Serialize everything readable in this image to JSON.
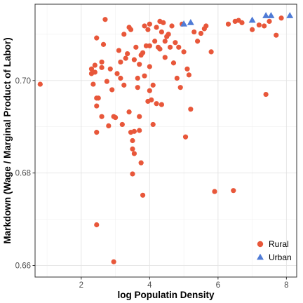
{
  "chart_data": {
    "type": "scatter",
    "title": "",
    "xlabel": "log Populatin Density",
    "ylabel": "Markdown (Wage / Marginal Product of Labor)",
    "xlim": [
      0.65,
      8.3
    ],
    "ylim": [
      0.6575,
      0.7165
    ],
    "x_ticks": [
      2,
      4,
      6,
      8
    ],
    "x_tick_labels": [
      "2",
      "4",
      "6",
      "8"
    ],
    "y_ticks": [
      0.66,
      0.68,
      0.7
    ],
    "y_tick_labels": [
      "0.66",
      "0.68",
      "0.70"
    ],
    "grid": true,
    "legend_placement": "bottom-right",
    "colors": {
      "Rural": "#e8573a",
      "Urban": "#4f7bd6"
    },
    "series": [
      {
        "name": "Rural",
        "marker": "circle",
        "points": [
          [
            0.8,
            0.6992
          ],
          [
            2.3,
            0.7025
          ],
          [
            2.3,
            0.7015
          ],
          [
            2.35,
            0.6992
          ],
          [
            2.4,
            0.7033
          ],
          [
            2.4,
            0.7018
          ],
          [
            2.45,
            0.7092
          ],
          [
            2.45,
            0.6962
          ],
          [
            2.45,
            0.6945
          ],
          [
            2.45,
            0.6888
          ],
          [
            2.6,
            0.6922
          ],
          [
            2.6,
            0.7028
          ],
          [
            2.65,
            0.7078
          ],
          [
            2.7,
            0.7132
          ],
          [
            2.75,
            0.6998
          ],
          [
            2.8,
            0.6902
          ],
          [
            2.85,
            0.7025
          ],
          [
            2.9,
            0.698
          ],
          [
            2.95,
            0.6922
          ],
          [
            3.0,
            0.692
          ],
          [
            3.05,
            0.7015
          ],
          [
            3.1,
            0.7065
          ],
          [
            3.15,
            0.704
          ],
          [
            3.15,
            0.7005
          ],
          [
            3.2,
            0.6905
          ],
          [
            3.25,
            0.71
          ],
          [
            3.3,
            0.7048
          ],
          [
            3.35,
            0.7058
          ],
          [
            3.4,
            0.6932
          ],
          [
            3.4,
            0.7115
          ],
          [
            3.45,
            0.711
          ],
          [
            3.45,
            0.6888
          ],
          [
            3.5,
            0.687
          ],
          [
            3.5,
            0.6852
          ],
          [
            3.5,
            0.6798
          ],
          [
            3.55,
            0.689
          ],
          [
            3.55,
            0.7045
          ],
          [
            3.6,
            0.7072
          ],
          [
            3.65,
            0.7005
          ],
          [
            3.65,
            0.6985
          ],
          [
            3.7,
            0.6922
          ],
          [
            3.7,
            0.6892
          ],
          [
            3.75,
            0.6822
          ],
          [
            3.75,
            0.7055
          ],
          [
            3.8,
            0.706
          ],
          [
            3.8,
            0.6752
          ],
          [
            3.85,
            0.701
          ],
          [
            3.85,
            0.7118
          ],
          [
            3.9,
            0.7075
          ],
          [
            3.95,
            0.711
          ],
          [
            3.95,
            0.6955
          ],
          [
            4.0,
            0.7122
          ],
          [
            4.0,
            0.7075
          ],
          [
            4.0,
            0.703
          ],
          [
            4.05,
            0.6958
          ],
          [
            4.1,
            0.699
          ],
          [
            4.1,
            0.6905
          ],
          [
            4.15,
            0.7085
          ],
          [
            4.2,
            0.7115
          ],
          [
            4.2,
            0.695
          ],
          [
            4.25,
            0.7072
          ],
          [
            4.3,
            0.7128
          ],
          [
            4.35,
            0.7105
          ],
          [
            4.35,
            0.6948
          ],
          [
            4.4,
            0.7125
          ],
          [
            4.45,
            0.7085
          ],
          [
            4.5,
            0.7095
          ],
          [
            4.55,
            0.71
          ],
          [
            4.6,
            0.7072
          ],
          [
            4.65,
            0.7118
          ],
          [
            4.7,
            0.7038
          ],
          [
            4.75,
            0.7082
          ],
          [
            4.8,
            0.7005
          ],
          [
            4.85,
            0.7072
          ],
          [
            4.9,
            0.6985
          ],
          [
            4.95,
            0.7122
          ],
          [
            5.0,
            0.7062
          ],
          [
            5.05,
            0.6878
          ],
          [
            5.1,
            0.7025
          ],
          [
            5.15,
            0.7012
          ],
          [
            5.2,
            0.6938
          ],
          [
            5.3,
            0.7105
          ],
          [
            5.4,
            0.7085
          ],
          [
            5.5,
            0.7102
          ],
          [
            5.6,
            0.7112
          ],
          [
            5.65,
            0.7118
          ],
          [
            5.8,
            0.7062
          ],
          [
            5.9,
            0.676
          ],
          [
            6.3,
            0.7122
          ],
          [
            6.45,
            0.6762
          ],
          [
            6.5,
            0.7128
          ],
          [
            6.6,
            0.713
          ],
          [
            6.7,
            0.7125
          ],
          [
            7.0,
            0.711
          ],
          [
            7.2,
            0.712
          ],
          [
            7.35,
            0.7118
          ],
          [
            7.4,
            0.697
          ],
          [
            7.5,
            0.7128
          ],
          [
            7.7,
            0.7098
          ],
          [
            7.85,
            0.7135
          ],
          [
            2.45,
            0.6688
          ],
          [
            2.95,
            0.6608
          ],
          [
            3.55,
            0.6842
          ],
          [
            2.6,
            0.704
          ],
          [
            3.7,
            0.7035
          ],
          [
            2.5,
            0.6962
          ],
          [
            4.45,
            0.705
          ],
          [
            3.25,
            0.699
          ],
          [
            4.0,
            0.6978
          ],
          [
            4.3,
            0.7068
          ]
        ]
      },
      {
        "name": "Urban",
        "marker": "triangle",
        "points": [
          [
            5.0,
            0.7122
          ],
          [
            5.2,
            0.7125
          ],
          [
            7.0,
            0.713
          ],
          [
            7.4,
            0.714
          ],
          [
            7.55,
            0.714
          ],
          [
            8.1,
            0.714
          ]
        ]
      }
    ]
  }
}
